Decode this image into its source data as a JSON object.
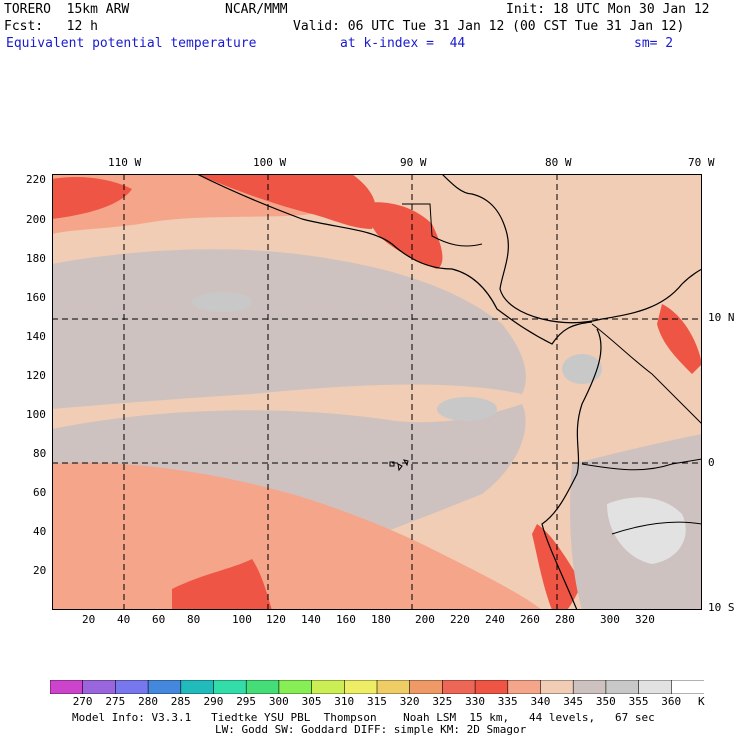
{
  "header": {
    "model_label": "TORERO  15km ARW",
    "center": "NCAR/MMM",
    "init": "Init: 18 UTC Mon 30 Jan 12",
    "fcst_label": "Fcst:   12 h",
    "valid": "Valid: 06 UTC Tue 31 Jan 12 (00 CST Tue 31 Jan 12)",
    "field_name": "Equivalent potential temperature",
    "level": "at k-index =  44",
    "smooth": "sm= 2"
  },
  "map": {
    "lon_labels": [
      "110 W",
      "100 W",
      "90 W",
      "80 W",
      "70 W"
    ],
    "lat_labels": [
      "10 N",
      "0",
      "10 S"
    ],
    "y_ticks": [
      "220",
      "200",
      "180",
      "160",
      "140",
      "120",
      "100",
      "80",
      "60",
      "40",
      "20"
    ],
    "x_ticks": [
      "20",
      "40",
      "60",
      "80",
      "100",
      "120",
      "140",
      "160",
      "180",
      "200",
      "220",
      "240",
      "260",
      "280",
      "300",
      "320"
    ]
  },
  "colorbar": {
    "labels": [
      "270",
      "275",
      "280",
      "285",
      "290",
      "295",
      "300",
      "305",
      "310",
      "315",
      "320",
      "325",
      "330",
      "335",
      "340",
      "345",
      "350",
      "355",
      "360"
    ],
    "unit": "K",
    "colors": [
      "#cc44cc",
      "#9966dd",
      "#7777ee",
      "#4488dd",
      "#22bbbb",
      "#33ddaa",
      "#44dd77",
      "#88ee55",
      "#ccee55",
      "#eeee66",
      "#eecc66",
      "#ee9966",
      "#ee6655",
      "#ee5544",
      "#f5a58a",
      "#f0cdb4",
      "#cdc2c0",
      "#c8c8c8",
      "#e2e2e2",
      "#ffffff"
    ]
  },
  "footer": {
    "line1": "Model Info: V3.3.1   Tiedtke YSU PBL  Thompson    Noah LSM  15 km,   44 levels,   67 sec",
    "line2": "LW: Godd SW: Goddard DIFF: simple KM: 2D Smagor"
  }
}
